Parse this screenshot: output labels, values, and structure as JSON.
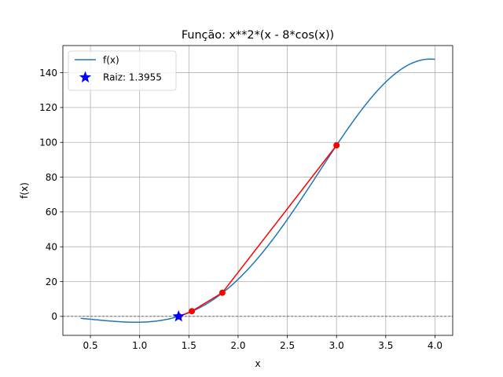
{
  "chart_data": {
    "type": "line",
    "title": "Função: x**2*(x - 8*cos(x))",
    "xlabel": "x",
    "ylabel": "f(x)",
    "xlim": [
      0.22,
      4.18
    ],
    "ylim": [
      -10.9,
      155.6
    ],
    "xticks": [
      0.5,
      1.0,
      1.5,
      2.0,
      2.5,
      3.0,
      3.5,
      4.0
    ],
    "xtick_labels": [
      "0.5",
      "1.0",
      "1.5",
      "2.0",
      "2.5",
      "3.0",
      "3.5",
      "4.0"
    ],
    "yticks": [
      0,
      20,
      40,
      60,
      80,
      100,
      120,
      140
    ],
    "ytick_labels": [
      "0",
      "20",
      "40",
      "60",
      "80",
      "100",
      "120",
      "140"
    ],
    "grid": true,
    "legend_position": "upper-left",
    "curve": {
      "name": "f(x)",
      "function": "x**2*(x - 8*cos(x))",
      "x_range": [
        0.4,
        4.0
      ],
      "color": "#1f77b4"
    },
    "iterations": {
      "color": "#ff0000",
      "x": [
        3.0,
        1.84,
        1.53,
        1.4
      ],
      "y": [
        98.3,
        13.6,
        3.0,
        0.0
      ]
    },
    "root": {
      "label": "Raiz: 1.3955",
      "x": 1.3955,
      "y": 0.0,
      "color": "#0000ff"
    },
    "zero_line": {
      "y": 0,
      "color": "#000000"
    }
  }
}
